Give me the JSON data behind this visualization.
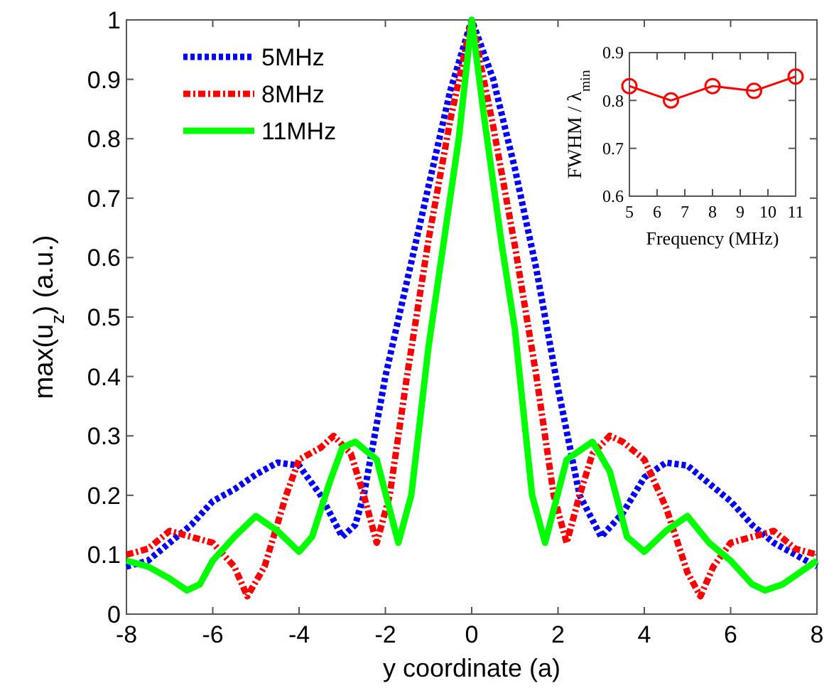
{
  "chart_data": [
    {
      "type": "line",
      "xlabel": "y coordinate (a)",
      "ylabel": "max(u$_{z}$) (a.u.)",
      "xlim": [
        -8,
        8
      ],
      "ylim": [
        0,
        1
      ],
      "xticks": [
        -8,
        -6,
        -4,
        -2,
        0,
        2,
        4,
        6,
        8
      ],
      "yticks": [
        0,
        0.1,
        0.2,
        0.3,
        0.4,
        0.5,
        0.6,
        0.7,
        0.8,
        0.9,
        1
      ],
      "legend": "top left",
      "grid": false,
      "series": [
        {
          "name": "5MHz",
          "color": "#0000ff",
          "line_style": "dotted",
          "x": [
            -8,
            -7.5,
            -7,
            -6.5,
            -6,
            -5.5,
            -5,
            -4.5,
            -4,
            -3.5,
            -3,
            -2.7,
            -2.5,
            -2,
            -1.5,
            -1,
            -0.5,
            0,
            0.5,
            1,
            1.5,
            2,
            2.5,
            3,
            3.5,
            4,
            4.5,
            5,
            5.5,
            6,
            6.5,
            7,
            7.5,
            8
          ],
          "values": [
            0.08,
            0.09,
            0.12,
            0.15,
            0.19,
            0.21,
            0.235,
            0.255,
            0.25,
            0.2,
            0.13,
            0.15,
            0.2,
            0.4,
            0.56,
            0.72,
            0.88,
            1,
            0.9,
            0.75,
            0.58,
            0.38,
            0.2,
            0.13,
            0.17,
            0.23,
            0.255,
            0.25,
            0.22,
            0.19,
            0.15,
            0.12,
            0.1,
            0.08
          ]
        },
        {
          "name": "8MHz",
          "color": "#ff0000",
          "line_style": "dashed",
          "x": [
            -8,
            -7.5,
            -7,
            -6.5,
            -6,
            -5.5,
            -5.2,
            -4.8,
            -4.3,
            -4,
            -3.5,
            -3.2,
            -2.8,
            -2.5,
            -2.2,
            -1.9,
            -1.5,
            -1,
            -0.5,
            0,
            0.5,
            1,
            1.5,
            1.9,
            2.2,
            2.5,
            2.8,
            3.2,
            3.5,
            4,
            4.5,
            5,
            5.3,
            5.6,
            6,
            6.5,
            7,
            7.5,
            8
          ],
          "values": [
            0.1,
            0.11,
            0.14,
            0.13,
            0.12,
            0.08,
            0.03,
            0.08,
            0.2,
            0.26,
            0.28,
            0.3,
            0.27,
            0.2,
            0.12,
            0.2,
            0.4,
            0.63,
            0.83,
            1,
            0.82,
            0.62,
            0.4,
            0.2,
            0.12,
            0.2,
            0.27,
            0.3,
            0.29,
            0.26,
            0.18,
            0.07,
            0.03,
            0.08,
            0.12,
            0.13,
            0.14,
            0.11,
            0.1
          ]
        },
        {
          "name": "11MHz",
          "color": "#00ff00",
          "line_style": "solid",
          "x": [
            -8,
            -7.5,
            -7,
            -6.6,
            -6.3,
            -6,
            -5.5,
            -5,
            -4.5,
            -4,
            -3.7,
            -3.3,
            -3,
            -2.7,
            -2.2,
            -1.7,
            -1.4,
            -1,
            -0.7,
            -0.3,
            0,
            0.3,
            0.7,
            1,
            1.4,
            1.7,
            2.2,
            2.8,
            3.2,
            3.6,
            4,
            4.5,
            5,
            5.5,
            6,
            6.5,
            6.8,
            7.2,
            7.6,
            8
          ],
          "values": [
            0.09,
            0.08,
            0.06,
            0.04,
            0.05,
            0.09,
            0.13,
            0.165,
            0.14,
            0.105,
            0.13,
            0.22,
            0.28,
            0.29,
            0.26,
            0.12,
            0.2,
            0.45,
            0.6,
            0.8,
            1,
            0.83,
            0.62,
            0.48,
            0.2,
            0.12,
            0.26,
            0.29,
            0.24,
            0.13,
            0.105,
            0.14,
            0.165,
            0.12,
            0.09,
            0.05,
            0.04,
            0.05,
            0.07,
            0.09
          ]
        }
      ]
    },
    {
      "type": "line",
      "xlabel": "Frequency (MHz)",
      "ylabel": "FWHM / λ$_{min}$",
      "xlim": [
        5,
        11
      ],
      "ylim": [
        0.6,
        0.9
      ],
      "xticks": [
        5,
        6,
        7,
        8,
        9,
        10,
        11
      ],
      "yticks": [
        0.6,
        0.7,
        0.8,
        0.9
      ],
      "grid": false,
      "marker": "circle",
      "series": [
        {
          "color": "#ff0000",
          "line_style": "solid",
          "x": [
            5,
            6.5,
            8,
            9.5,
            11
          ],
          "values": [
            0.83,
            0.8,
            0.83,
            0.82,
            0.85
          ]
        }
      ]
    }
  ]
}
